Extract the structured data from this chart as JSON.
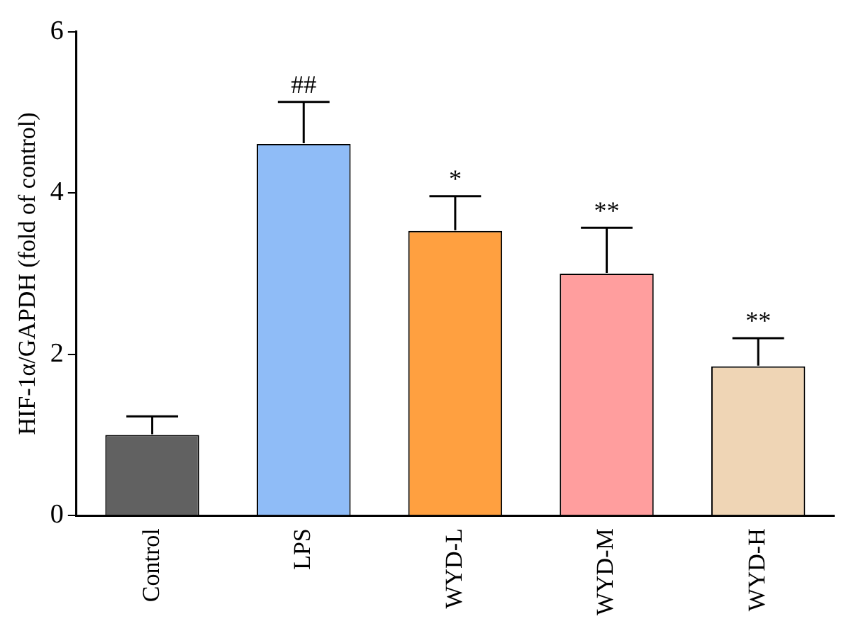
{
  "chart_data": {
    "type": "bar",
    "ylabel": "HIF-1α/GAPDH (fold of control)",
    "categories": [
      "Control",
      "LPS",
      "WYD-L",
      "WYD-M",
      "WYD-H"
    ],
    "values": [
      1.0,
      4.61,
      3.53,
      3.0,
      1.85
    ],
    "colors": [
      "#616161",
      "#8fbcf7",
      "#ffa040",
      "#ff9e9e",
      "#efd5b5"
    ],
    "errors": [
      [
        1.0,
        1.23
      ],
      [
        4.61,
        5.13
      ],
      [
        3.53,
        3.96
      ],
      [
        3.0,
        3.57
      ],
      [
        1.85,
        2.2
      ]
    ],
    "ylim": [
      0,
      6
    ],
    "yticks": [
      0,
      2,
      4,
      6
    ],
    "grid": false,
    "legend": false,
    "annotations": [
      {
        "text": "##",
        "x": "LPS",
        "y": 5.13
      },
      {
        "text": "*",
        "x": "WYD-L",
        "y": 3.96
      },
      {
        "text": "**",
        "x": "WYD-M",
        "y": 3.57
      },
      {
        "text": "**",
        "x": "WYD-H",
        "y": 2.2
      }
    ]
  }
}
